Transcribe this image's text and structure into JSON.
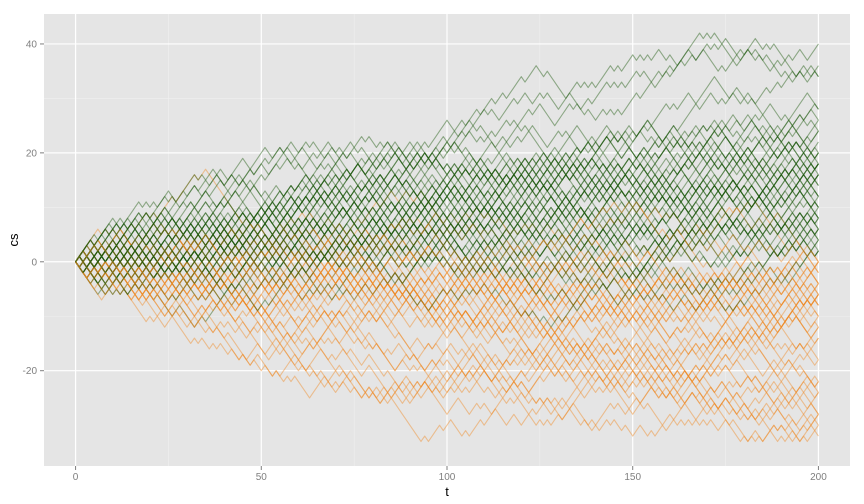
{
  "chart_data": {
    "type": "line",
    "title": "",
    "xlabel": "t",
    "ylabel": "cs",
    "xlim": [
      -8.5,
      208.5
    ],
    "ylim": [
      -37.5,
      45.5
    ],
    "x_ticks": [
      0,
      50,
      100,
      150,
      200
    ],
    "y_ticks": [
      -20,
      0,
      20,
      40
    ],
    "x_tick_labels": [
      "0",
      "50",
      "100",
      "150",
      "200"
    ],
    "y_tick_labels": [
      "-20",
      "0",
      "20",
      "40"
    ],
    "grid": true,
    "legend": "none",
    "colors": {
      "panel": "#e5e5e5",
      "grid_major": "#ffffff",
      "grid_minor": "#f0f0f0",
      "positive": "#1f5c0f",
      "negative": "#f08a24"
    },
    "series_description": "100 random walks of 200 ±1 steps; each walk is coloured green if it ends above 0 and orange if it ends at or below 0",
    "n_walks": 100,
    "n_steps": 200,
    "endpoints": {
      "max_final": 42,
      "min_final": -33
    }
  }
}
